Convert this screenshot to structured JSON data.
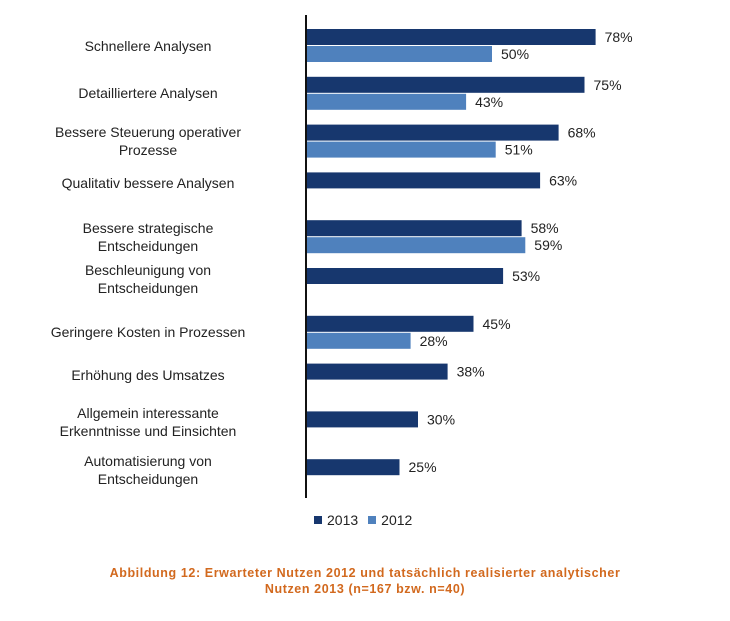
{
  "chart_data": {
    "type": "bar",
    "orientation": "horizontal",
    "categories": [
      "Schnellere Analysen",
      "Detailliertere Analysen",
      "Bessere Steuerung operativer Prozesse",
      "Qualitativ bessere Analysen",
      "Bessere strategische Entscheidungen",
      "Beschleunigung von Entscheidungen",
      "Geringere Kosten in Prozessen",
      "Erhöhung des Umsatzes",
      "Allgemein interessante Erkenntnisse und Einsichten",
      "Automatisierung von Entscheidungen"
    ],
    "category_lines": [
      [
        "Schnellere Analysen"
      ],
      [
        "Detailliertere Analysen"
      ],
      [
        "Bessere Steuerung operativer",
        "Prozesse"
      ],
      [
        "Qualitativ bessere Analysen"
      ],
      [
        "Bessere strategische",
        "Entscheidungen"
      ],
      [
        "Beschleunigung von",
        "Entscheidungen"
      ],
      [
        "Geringere Kosten in Prozessen"
      ],
      [
        "Erhöhung des Umsatzes"
      ],
      [
        "Allgemein interessante",
        "Erkenntnisse und Einsichten"
      ],
      [
        "Automatisierung von",
        "Entscheidungen"
      ]
    ],
    "series": [
      {
        "name": "2013",
        "color": "#17376e",
        "values": [
          78,
          75,
          68,
          63,
          58,
          53,
          45,
          38,
          30,
          25
        ],
        "labels": [
          "78%",
          "75%",
          "68%",
          "63%",
          "58%",
          "53%",
          "45%",
          "38%",
          "30%",
          "25%"
        ]
      },
      {
        "name": "2012",
        "color": "#4f81bd",
        "values": [
          50,
          43,
          51,
          null,
          59,
          null,
          28,
          null,
          null,
          null
        ],
        "labels": [
          "50%",
          "43%",
          "51%",
          null,
          "59%",
          null,
          "28%",
          null,
          null,
          null
        ]
      }
    ],
    "xlim": [
      0,
      100
    ],
    "grid": false,
    "legend": "bottom-center",
    "caption": "Abbildung 12: Erwarteter Nutzen 2012 und tatsächlich realisierter analytischer Nutzen 2013 (n=167 bzw. n=40)"
  },
  "legend": {
    "items": [
      "2013",
      "2012"
    ]
  },
  "caption": {
    "line1": "Abbildung 12: Erwarteter Nutzen 2012 und tatsächlich realisierter analytischer",
    "line2": "Nutzen 2013 (n=167 bzw. n=40)"
  }
}
